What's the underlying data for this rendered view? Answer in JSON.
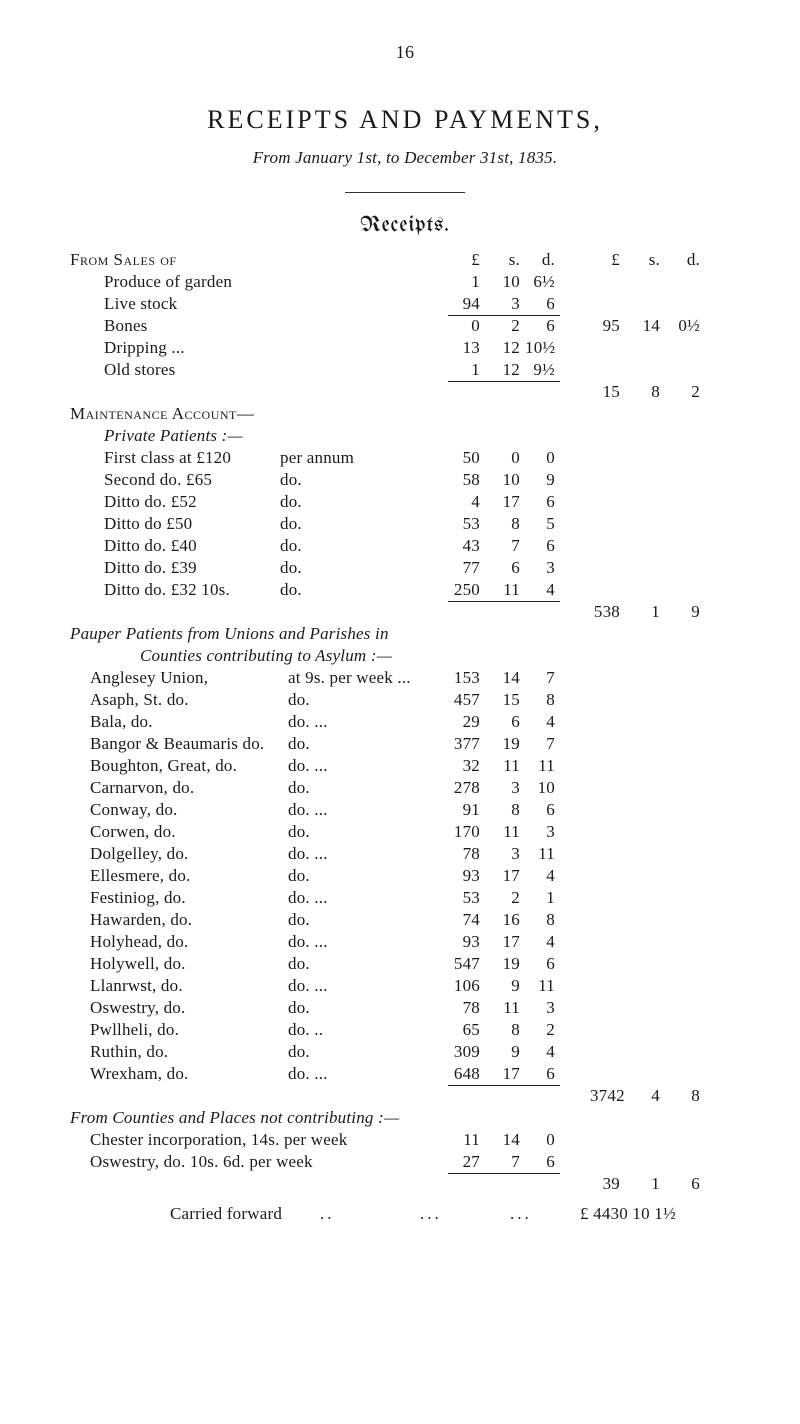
{
  "page_number": "16",
  "title": "RECEIPTS AND PAYMENTS,",
  "subtitle": "From January 1st, to December 31st, 1835.",
  "receipts_heading": "Receipts.",
  "header_cols1": {
    "L": "£",
    "s": "s.",
    "d": "d."
  },
  "header_cols2": {
    "L": "£",
    "s": "s.",
    "d": "d."
  },
  "from_sales": {
    "heading": "From Sales of",
    "items": [
      {
        "label": "Produce of garden",
        "L": "1",
        "s": "10",
        "d": "6½"
      },
      {
        "label": "Live stock",
        "L": "94",
        "s": "3",
        "d": "6"
      }
    ],
    "subtotal": {
      "L": "95",
      "s": "14",
      "d": "0½"
    },
    "items2": [
      {
        "label": "Bones",
        "L": "0",
        "s": "2",
        "d": "6"
      },
      {
        "label": "Dripping  ...",
        "L": "13",
        "s": "12",
        "d": "10½"
      },
      {
        "label": "Old stores",
        "L": "1",
        "s": "12",
        "d": "9½"
      }
    ],
    "subtotal2": {
      "L": "15",
      "s": "8",
      "d": "2"
    }
  },
  "maintenance": {
    "heading": "Maintenance Account—",
    "private_heading": "Private Patients :—",
    "rows": [
      {
        "label": "First class at £120",
        "per": "per annum",
        "L": "50",
        "s": "0",
        "d": "0"
      },
      {
        "label": "Second do.      £65",
        "per": "do.",
        "L": "58",
        "s": "10",
        "d": "9"
      },
      {
        "label": "Ditto  do.      £52",
        "per": "do.",
        "L": "4",
        "s": "17",
        "d": "6"
      },
      {
        "label": "Ditto  do       £50",
        "per": "do.",
        "L": "53",
        "s": "8",
        "d": "5"
      },
      {
        "label": "Ditto  do.      £40",
        "per": "do.",
        "L": "43",
        "s": "7",
        "d": "6"
      },
      {
        "label": "Ditto  do.      £39",
        "per": "do.",
        "L": "77",
        "s": "6",
        "d": "3"
      },
      {
        "label": "Ditto  do.   £32 10s.",
        "per": "do.",
        "L": "250",
        "s": "11",
        "d": "4"
      }
    ],
    "subtotal": {
      "L": "538",
      "s": "1",
      "d": "9"
    }
  },
  "pauper": {
    "heading1": "Pauper Patients from Unions and Parishes in",
    "heading2": "Counties contributing to Asylum :—",
    "rows": [
      {
        "label": "Anglesey Union,",
        "rate": "at 9s. per week  ...",
        "L": "153",
        "s": "14",
        "d": "7"
      },
      {
        "label": "Asaph, St.  do.",
        "rate": "do.",
        "L": "457",
        "s": "15",
        "d": "8"
      },
      {
        "label": "Bala, do.",
        "rate": "do.  ...",
        "L": "29",
        "s": "6",
        "d": "4"
      },
      {
        "label": "Bangor & Beaumaris do.",
        "rate": "do.",
        "L": "377",
        "s": "19",
        "d": "7"
      },
      {
        "label": "Boughton, Great, do.",
        "rate": "do.  ...",
        "L": "32",
        "s": "11",
        "d": "11"
      },
      {
        "label": "Carnarvon, do.",
        "rate": "do.",
        "L": "278",
        "s": "3",
        "d": "10"
      },
      {
        "label": "Conway, do.",
        "rate": "do.  ...",
        "L": "91",
        "s": "8",
        "d": "6"
      },
      {
        "label": "Corwen, do.",
        "rate": "do.",
        "L": "170",
        "s": "11",
        "d": "3"
      },
      {
        "label": "Dolgelley, do.",
        "rate": "do.  ...",
        "L": "78",
        "s": "3",
        "d": "11"
      },
      {
        "label": "Ellesmere, do.",
        "rate": "do.",
        "L": "93",
        "s": "17",
        "d": "4"
      },
      {
        "label": "Festiniog, do.",
        "rate": "do.  ...",
        "L": "53",
        "s": "2",
        "d": "1"
      },
      {
        "label": "Hawarden, do.",
        "rate": "do.",
        "L": "74",
        "s": "16",
        "d": "8"
      },
      {
        "label": "Holyhead, do.",
        "rate": "do.  ...",
        "L": "93",
        "s": "17",
        "d": "4"
      },
      {
        "label": "Holywell, do.",
        "rate": "do.",
        "L": "547",
        "s": "19",
        "d": "6"
      },
      {
        "label": "Llanrwst, do.",
        "rate": "do.  ...",
        "L": "106",
        "s": "9",
        "d": "11"
      },
      {
        "label": "Oswestry, do.",
        "rate": "do.",
        "L": "78",
        "s": "11",
        "d": "3"
      },
      {
        "label": "Pwllheli, do.",
        "rate": "do.  ..",
        "L": "65",
        "s": "8",
        "d": "2"
      },
      {
        "label": "Ruthin, do.",
        "rate": "do.",
        "L": "309",
        "s": "9",
        "d": "4"
      },
      {
        "label": "Wrexham, do.",
        "rate": "do.  ...",
        "L": "648",
        "s": "17",
        "d": "6"
      }
    ],
    "subtotal": {
      "L": "3742",
      "s": "4",
      "d": "8"
    }
  },
  "counties_places": {
    "heading": "From Counties and Places not contributing :—",
    "rows": [
      {
        "label": "Chester incorporation, 14s. per week",
        "L": "11",
        "s": "14",
        "d": "0"
      },
      {
        "label": "Oswestry,        do.       10s. 6d. per week",
        "L": "27",
        "s": "7",
        "d": "6"
      }
    ],
    "subtotal": {
      "L": "39",
      "s": "1",
      "d": "6"
    }
  },
  "carried_forward": {
    "label": "Carried forward",
    "total": "£ 4430 10   1½"
  }
}
